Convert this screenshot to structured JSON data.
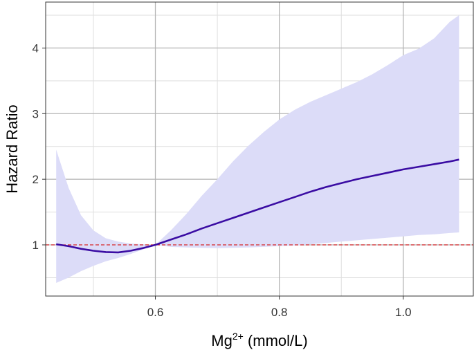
{
  "chart_data": {
    "type": "line",
    "xlabel": "Mg",
    "xlabel_sup": "2+",
    "xlabel_unit": " (mmol/L)",
    "ylabel": "Hazard Ratio",
    "xlim": [
      0.423,
      1.113
    ],
    "ylim": [
      0.22,
      4.7
    ],
    "x_ticks": [
      0.6,
      0.8,
      1.0
    ],
    "x_tick_labels": [
      "0.6",
      "0.8",
      "1.0"
    ],
    "x_minor_ticks": [
      0.5,
      0.7,
      0.9
    ],
    "y_ticks": [
      1,
      2,
      3,
      4
    ],
    "y_tick_labels": [
      "1",
      "2",
      "3",
      "4"
    ],
    "y_minor_ticks": [
      0.5,
      1.5,
      2.5,
      3.5,
      4.5
    ],
    "grid": true,
    "reference_line": {
      "y": 1,
      "color": "#d62728",
      "style": "dashed"
    },
    "series": [
      {
        "color": "#3a0ca3",
        "points": [
          [
            0.44,
            1.01
          ],
          [
            0.46,
            0.98
          ],
          [
            0.48,
            0.94
          ],
          [
            0.5,
            0.91
          ],
          [
            0.52,
            0.89
          ],
          [
            0.54,
            0.885
          ],
          [
            0.56,
            0.91
          ],
          [
            0.58,
            0.95
          ],
          [
            0.6,
            1.0
          ],
          [
            0.625,
            1.08
          ],
          [
            0.65,
            1.16
          ],
          [
            0.675,
            1.25
          ],
          [
            0.7,
            1.33
          ],
          [
            0.725,
            1.41
          ],
          [
            0.75,
            1.49
          ],
          [
            0.775,
            1.57
          ],
          [
            0.8,
            1.65
          ],
          [
            0.825,
            1.73
          ],
          [
            0.85,
            1.81
          ],
          [
            0.875,
            1.88
          ],
          [
            0.9,
            1.94
          ],
          [
            0.925,
            2.0
          ],
          [
            0.95,
            2.05
          ],
          [
            0.975,
            2.1
          ],
          [
            1.0,
            2.15
          ],
          [
            1.025,
            2.19
          ],
          [
            1.05,
            2.23
          ],
          [
            1.075,
            2.27
          ],
          [
            1.09,
            2.3
          ]
        ],
        "ci_color": "#dcdcf8",
        "ci": [
          [
            0.44,
            0.42,
            2.45
          ],
          [
            0.46,
            0.5,
            1.87
          ],
          [
            0.48,
            0.6,
            1.45
          ],
          [
            0.5,
            0.68,
            1.22
          ],
          [
            0.52,
            0.75,
            1.1
          ],
          [
            0.54,
            0.8,
            1.05
          ],
          [
            0.56,
            0.86,
            1.02
          ],
          [
            0.58,
            0.93,
            1.01
          ],
          [
            0.6,
            1.0,
            1.0
          ],
          [
            0.625,
            0.97,
            1.22
          ],
          [
            0.65,
            0.96,
            1.47
          ],
          [
            0.675,
            0.955,
            1.75
          ],
          [
            0.7,
            0.95,
            2.0
          ],
          [
            0.725,
            0.955,
            2.27
          ],
          [
            0.75,
            0.96,
            2.51
          ],
          [
            0.775,
            0.97,
            2.72
          ],
          [
            0.8,
            0.98,
            2.91
          ],
          [
            0.825,
            0.99,
            3.06
          ],
          [
            0.85,
            1.01,
            3.18
          ],
          [
            0.875,
            1.03,
            3.28
          ],
          [
            0.9,
            1.05,
            3.38
          ],
          [
            0.925,
            1.07,
            3.48
          ],
          [
            0.95,
            1.09,
            3.6
          ],
          [
            0.975,
            1.11,
            3.74
          ],
          [
            1.0,
            1.13,
            3.89
          ],
          [
            1.025,
            1.15,
            3.99
          ],
          [
            1.05,
            1.16,
            4.15
          ],
          [
            1.075,
            1.18,
            4.4
          ],
          [
            1.09,
            1.19,
            4.5
          ]
        ]
      }
    ]
  }
}
